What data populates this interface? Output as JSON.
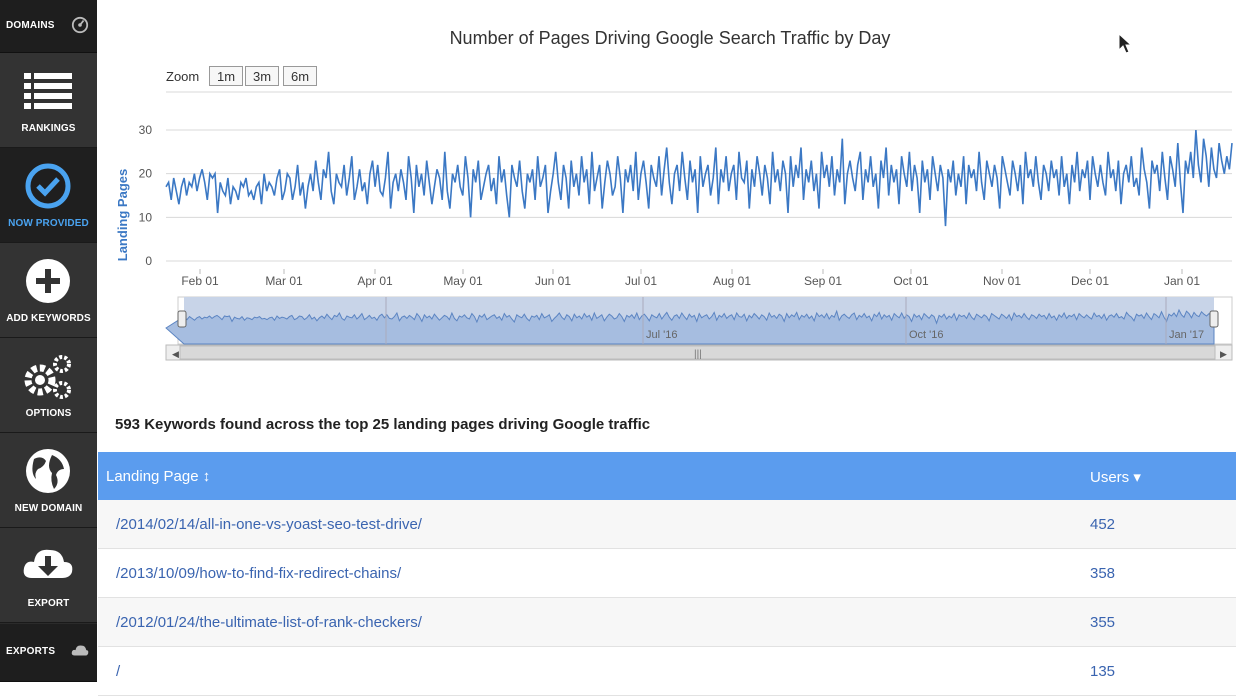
{
  "sidebar": {
    "domains_label": "DOMAINS",
    "items": [
      {
        "label": "RANKINGS",
        "icon": "list-icon"
      },
      {
        "label": "NOW PROVIDED",
        "icon": "check-circle-icon"
      },
      {
        "label": "ADD KEYWORDS",
        "icon": "plus-circle-icon"
      },
      {
        "label": "OPTIONS",
        "icon": "gears-icon"
      },
      {
        "label": "NEW DOMAIN",
        "icon": "globe-icon"
      },
      {
        "label": "EXPORT",
        "icon": "cloud-download-icon"
      }
    ],
    "exports_label": "EXPORTS",
    "active_color": "#4aa3f0"
  },
  "chart": {
    "zoom_label": "Zoom",
    "zoom_buttons": [
      "1m",
      "3m",
      "6m"
    ],
    "navigator_labels": [
      "Jul '16",
      "Oct '16",
      "Jan '17"
    ]
  },
  "chart_data": {
    "type": "line",
    "title": "Number of Pages Driving Google Search Traffic by Day",
    "ylabel": "Landing Pages",
    "xlabel": "",
    "ylim": [
      0,
      30
    ],
    "yticks": [
      0,
      10,
      20,
      30
    ],
    "x_ticks": [
      "Feb 01",
      "Mar 01",
      "Apr 01",
      "May 01",
      "Jun 01",
      "Jul 01",
      "Aug 01",
      "Sep 01",
      "Oct 01",
      "Nov 01",
      "Dec 01",
      "Jan 01"
    ],
    "series": [
      {
        "values": [
          17,
          18,
          14,
          19,
          16,
          13,
          17,
          19,
          15,
          18,
          17,
          20,
          16,
          19,
          21,
          18,
          14,
          20,
          19,
          20,
          11,
          18,
          16,
          15,
          19,
          13,
          17,
          16,
          14,
          18,
          17,
          19,
          15,
          16,
          14,
          17,
          18,
          13,
          20,
          16,
          18,
          17,
          15,
          19,
          21,
          14,
          16,
          20,
          19,
          14,
          17,
          22,
          15,
          18,
          12,
          17,
          20,
          16,
          23,
          18,
          14,
          21,
          19,
          25,
          16,
          13,
          20,
          18,
          17,
          22,
          15,
          19,
          24,
          14,
          17,
          21,
          16,
          18,
          13,
          20,
          23,
          17,
          22,
          16,
          15,
          19,
          25,
          12,
          18,
          20,
          16,
          21,
          18,
          14,
          24,
          19,
          11,
          22,
          17,
          20,
          15,
          23,
          18,
          13,
          17,
          21,
          19,
          14,
          25,
          16,
          12,
          20,
          18,
          22,
          17,
          15,
          24,
          19,
          10,
          21,
          18,
          23,
          14,
          17,
          20,
          22,
          16,
          19,
          13,
          24,
          18,
          21,
          15,
          10,
          22,
          19,
          17,
          23,
          16,
          12,
          20,
          18,
          21,
          14,
          24,
          17,
          19,
          22,
          11,
          16,
          20,
          25,
          18,
          14,
          22,
          19,
          12,
          23,
          17,
          20,
          15,
          24,
          18,
          21,
          13,
          25,
          16,
          19,
          22,
          12,
          18,
          23,
          20,
          15,
          17,
          24,
          19,
          11,
          21,
          18,
          22,
          16,
          25,
          14,
          20,
          23,
          18,
          12,
          22,
          19,
          17,
          24,
          15,
          21,
          26,
          18,
          13,
          20,
          22,
          16,
          25,
          19,
          14,
          23,
          18,
          21,
          11,
          24,
          17,
          20,
          22,
          15,
          19,
          26,
          13,
          21,
          18,
          24,
          16,
          20,
          22,
          14,
          25,
          19,
          18,
          23,
          12,
          21,
          17,
          24,
          20,
          15,
          22,
          19,
          13,
          25,
          18,
          21,
          16,
          23,
          20,
          11,
          24,
          17,
          22,
          19,
          26,
          14,
          21,
          18,
          23,
          16,
          20,
          12,
          25,
          19,
          22,
          17,
          24,
          15,
          21,
          18,
          28,
          13,
          20,
          23,
          19,
          16,
          22,
          25,
          14,
          21,
          18,
          24,
          17,
          20,
          12,
          23,
          19,
          26,
          15,
          22,
          18,
          21,
          13,
          24,
          20,
          17,
          25,
          16,
          22,
          19,
          11,
          23,
          18,
          21,
          14,
          24,
          20,
          16,
          22,
          19,
          8,
          21,
          18,
          23,
          15,
          20,
          17,
          24,
          13,
          22,
          19,
          21,
          16,
          25,
          18,
          14,
          23,
          20,
          17,
          22,
          19,
          12,
          24,
          21,
          18,
          15,
          23,
          20,
          16,
          22,
          13,
          25,
          19,
          21,
          17,
          24,
          18,
          14,
          22,
          20,
          16,
          23,
          19,
          21,
          15,
          24,
          17,
          20,
          13,
          22,
          18,
          25,
          16,
          21,
          19,
          23,
          14,
          24,
          20,
          17,
          22,
          18,
          15,
          25,
          19,
          21,
          16,
          23,
          13,
          20,
          22,
          18,
          24,
          17,
          19,
          15,
          26,
          21,
          18,
          12,
          23,
          20,
          22,
          16,
          25,
          19,
          14,
          24,
          21,
          17,
          27,
          18,
          11,
          23,
          20,
          25,
          19,
          30,
          22,
          18,
          28,
          24,
          17,
          26,
          21,
          19,
          27,
          23,
          20,
          24,
          21,
          27
        ]
      }
    ],
    "grid": true,
    "legend": "none",
    "line_color": "#3b78c4"
  },
  "summary": "593 Keywords found across the top 25 landing pages driving Google traffic",
  "table": {
    "headers": {
      "landing_page": "Landing Page ↕",
      "users": "Users ▾"
    },
    "rows": [
      {
        "page": "/2014/02/14/all-in-one-vs-yoast-seo-test-drive/",
        "users": "452"
      },
      {
        "page": "/2013/10/09/how-to-find-fix-redirect-chains/",
        "users": "358"
      },
      {
        "page": "/2012/01/24/the-ultimate-list-of-rank-checkers/",
        "users": "355"
      },
      {
        "page": "/",
        "users": "135"
      }
    ],
    "header_color": "#5b9cee",
    "link_color": "#3a64b0"
  }
}
